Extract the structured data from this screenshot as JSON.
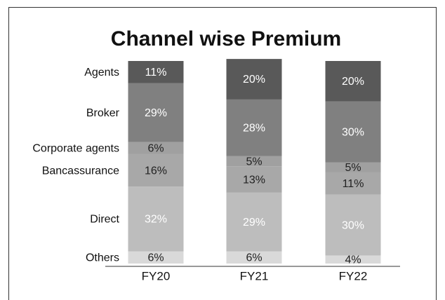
{
  "chart_data": {
    "type": "stacked_bar",
    "title": "Channel wise Premium",
    "categories": [
      "FY20",
      "FY21",
      "FY22"
    ],
    "series": [
      {
        "name": "Others",
        "color": "#d9d9d9",
        "label_color": "#222222",
        "values": [
          6,
          6,
          4
        ],
        "value_labels": [
          "6%",
          "6%",
          "4%"
        ]
      },
      {
        "name": "Direct",
        "color": "#bdbdbd",
        "label_color": "#ffffff",
        "values": [
          32,
          29,
          30
        ],
        "value_labels": [
          "32%",
          "29%",
          "30%"
        ]
      },
      {
        "name": "Bancassurance",
        "color": "#a8a8a8",
        "label_color": "#222222",
        "values": [
          16,
          13,
          11
        ],
        "value_labels": [
          "16%",
          "13%",
          "11%"
        ]
      },
      {
        "name": "Corporate agents",
        "color": "#a0a0a0",
        "label_color": "#222222",
        "values": [
          6,
          5,
          5
        ],
        "value_labels": [
          "6%",
          "5%",
          "5%"
        ]
      },
      {
        "name": "Broker",
        "color": "#808080",
        "label_color": "#ffffff",
        "values": [
          29,
          28,
          30
        ],
        "value_labels": [
          "29%",
          "28%",
          "30%"
        ]
      },
      {
        "name": "Agents",
        "color": "#595959",
        "label_color": "#ffffff",
        "values": [
          11,
          20,
          20
        ],
        "value_labels": [
          "11%",
          "20%",
          "20%"
        ]
      }
    ]
  }
}
